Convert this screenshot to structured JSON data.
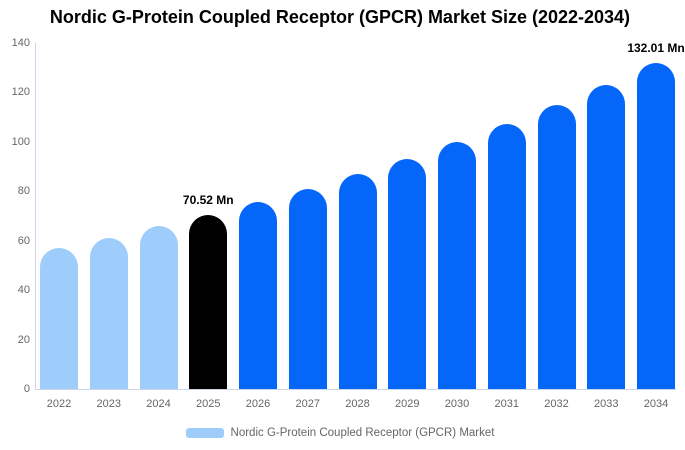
{
  "title": "Nordic G-Protein Coupled Receptor (GPCR) Market Size (2022-2034)",
  "colors": {
    "past_bar": "#9ECDFB",
    "current_bar": "#000000",
    "forecast_bar": "#0566FA",
    "axis_line": "#CCD6EB",
    "axis_label_text": "#666666",
    "title_text": "#000000"
  },
  "chart_data": {
    "type": "bar",
    "title": "Nordic G-Protein Coupled Receptor (GPCR) Market Size (2022-2034)",
    "categories": [
      "2022",
      "2023",
      "2024",
      "2025",
      "2026",
      "2027",
      "2028",
      "2029",
      "2030",
      "2031",
      "2032",
      "2033",
      "2034"
    ],
    "values": [
      57.2,
      61.3,
      65.8,
      70.52,
      75.6,
      81.1,
      86.9,
      93.2,
      99.9,
      107.1,
      114.9,
      123.2,
      132.01
    ],
    "unit": "Mn",
    "bar_color_roles": [
      "past",
      "past",
      "past",
      "current",
      "forecast",
      "forecast",
      "forecast",
      "forecast",
      "forecast",
      "forecast",
      "forecast",
      "forecast",
      "forecast"
    ],
    "xlabel": "",
    "ylabel": "",
    "ylim": [
      0,
      140
    ],
    "yticks": [
      0,
      20,
      40,
      60,
      80,
      100,
      120,
      140
    ],
    "grid": false,
    "legend_position": "bottom",
    "legend_entries": [
      "Nordic G-Protein Coupled Receptor (GPCR) Market"
    ],
    "annotations": [
      {
        "category": "2025",
        "text": "70.52 Mn"
      },
      {
        "category": "2034",
        "text": "132.01 Mn"
      }
    ]
  }
}
